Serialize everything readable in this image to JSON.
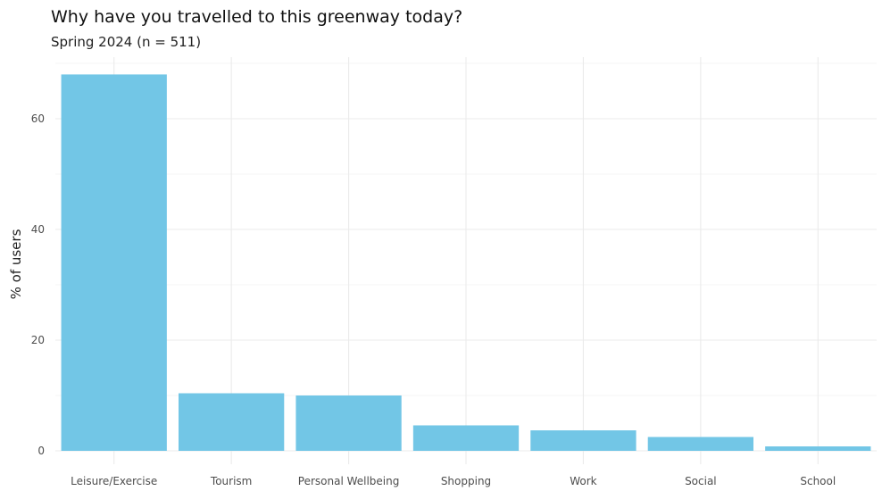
{
  "chart_data": {
    "type": "bar",
    "title": "Why have you travelled to this greenway today?",
    "subtitle": "Spring 2024 (n = 511)",
    "xlabel": "",
    "ylabel": "% of users",
    "categories": [
      "Leisure/Exercise",
      "Tourism",
      "Personal Wellbeing",
      "Shopping",
      "Work",
      "Social",
      "School"
    ],
    "values": [
      68.0,
      10.4,
      10.0,
      4.6,
      3.7,
      2.5,
      0.8
    ],
    "ylim": [
      0,
      70
    ],
    "yticks": [
      0,
      20,
      40,
      60
    ],
    "grid": true,
    "bar_color": "#72C6E6",
    "grid_color": "#EBEBEB"
  }
}
